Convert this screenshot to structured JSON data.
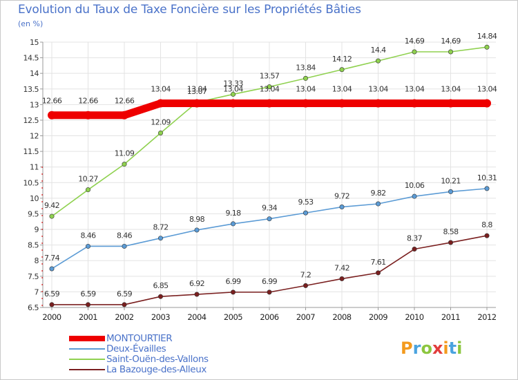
{
  "header": {
    "title": "Evolution du Taux de Taxe Foncière sur les Propriétés Bâties",
    "subtitle": "(en %)"
  },
  "logo": {
    "text": "Proxiti",
    "colors": [
      "#f39a1e",
      "#4aa3df",
      "#8cc63f",
      "#e23c3c",
      "#f39a1e",
      "#4aa3df",
      "#8cc63f"
    ]
  },
  "chart_data": {
    "type": "line",
    "title": "Evolution du Taux de Taxe Foncière sur les Propriétés Bâties",
    "ylabel": "(en %)",
    "xlabel": "",
    "ylim": [
      6.5,
      15
    ],
    "yticks": [
      6.5,
      7,
      7.5,
      8,
      8.5,
      9,
      9.5,
      10,
      10.5,
      11,
      11.5,
      12,
      12.5,
      13,
      13.5,
      14,
      14.5,
      15
    ],
    "ytick_labels": [
      "6.5",
      "7",
      "7.5",
      "8",
      "8.5",
      "9",
      "9.5",
      "10",
      "10.5",
      "11",
      "11.5",
      "12",
      "12.5",
      "13",
      "13.5",
      "14",
      "14.5",
      "15"
    ],
    "categories": [
      "2000",
      "2001",
      "2002",
      "2003",
      "2004",
      "2005",
      "2006",
      "2007",
      "2008",
      "2009",
      "2010",
      "2011",
      "2012"
    ],
    "grid": true,
    "legend_position": "bottom-left",
    "series": [
      {
        "name": "MONTOURTIER",
        "color": "#ee0000",
        "values": [
          12.66,
          12.66,
          12.66,
          13.04,
          13.04,
          13.04,
          13.04,
          13.04,
          13.04,
          13.04,
          13.04,
          13.04,
          13.04
        ],
        "labels": [
          "12.66",
          "12.66",
          "12.66",
          "13.04",
          "13.04",
          "13.04",
          "13.04",
          "13.04",
          "13.04",
          "13.04",
          "13.04",
          "13.04",
          "13.04"
        ]
      },
      {
        "name": "Deux-Évailles",
        "color": "#5b9bd5",
        "values": [
          7.74,
          8.46,
          8.46,
          8.72,
          8.98,
          9.18,
          9.34,
          9.53,
          9.72,
          9.82,
          10.06,
          10.21,
          10.31
        ],
        "labels": [
          "7.74",
          "8.46",
          "8.46",
          "8.72",
          "8.98",
          "9.18",
          "9.34",
          "9.53",
          "9.72",
          "9.82",
          "10.06",
          "10.21",
          "10.31"
        ]
      },
      {
        "name": "Saint-Ouën-des-Vallons",
        "color": "#8fd14f",
        "values": [
          9.42,
          10.27,
          11.09,
          12.09,
          13.07,
          13.33,
          13.57,
          13.84,
          14.12,
          14.4,
          14.69,
          14.69,
          14.84
        ],
        "labels": [
          "9.42",
          "10.27",
          "11.09",
          "12.09",
          "13.07",
          "13.33",
          "13.57",
          "13.84",
          "14.12",
          "14.4",
          "14.69",
          "14.69",
          "14.84"
        ]
      },
      {
        "name": "La Bazouge-des-Alleux",
        "color": "#7a1f1f",
        "values": [
          6.59,
          6.59,
          6.59,
          6.85,
          6.92,
          6.99,
          6.99,
          7.2,
          7.42,
          7.61,
          8.37,
          8.58,
          8.8
        ],
        "labels": [
          "6.59",
          "6.59",
          "6.59",
          "6.85",
          "6.92",
          "6.99",
          "6.99",
          "7.2",
          "7.42",
          "7.61",
          "8.37",
          "8.58",
          "8.8"
        ]
      }
    ]
  }
}
